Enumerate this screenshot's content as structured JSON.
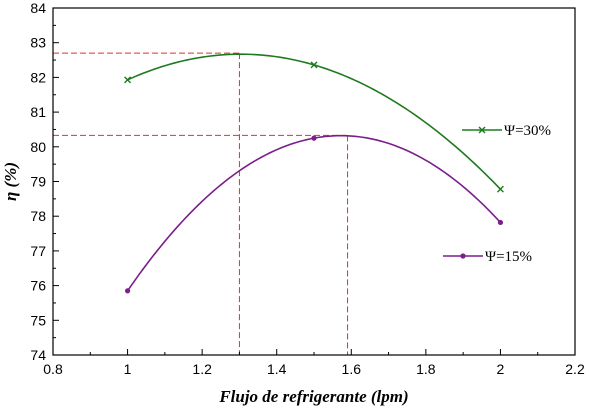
{
  "chart_data": {
    "type": "line",
    "xlabel": "Flujo de refrigerante (lpm)",
    "ylabel": "η (%)",
    "xlim": [
      0.8,
      2.2
    ],
    "ylim": [
      74,
      84
    ],
    "x_ticks": [
      "0.8",
      "1",
      "1.2",
      "1.4",
      "1.6",
      "1.8",
      "2",
      "2.2"
    ],
    "y_ticks": [
      "74",
      "75",
      "76",
      "77",
      "78",
      "79",
      "80",
      "81",
      "82",
      "83",
      "84"
    ],
    "grid": false,
    "series": [
      {
        "name": "Ψ=30%",
        "color": "#1e7a1e",
        "marker": "x",
        "x": [
          1.0,
          1.5,
          2.0
        ],
        "y": [
          81.93,
          82.36,
          78.78
        ],
        "peak": {
          "x": 1.3,
          "y": 82.7
        }
      },
      {
        "name": "Ψ=15%",
        "color": "#7b1e8c",
        "marker": "circle",
        "x": [
          1.0,
          1.5,
          2.0
        ],
        "y": [
          75.85,
          80.25,
          77.82
        ],
        "peak": {
          "x": 1.59,
          "y": 80.33
        }
      }
    ],
    "reference_color": "#e03030"
  }
}
